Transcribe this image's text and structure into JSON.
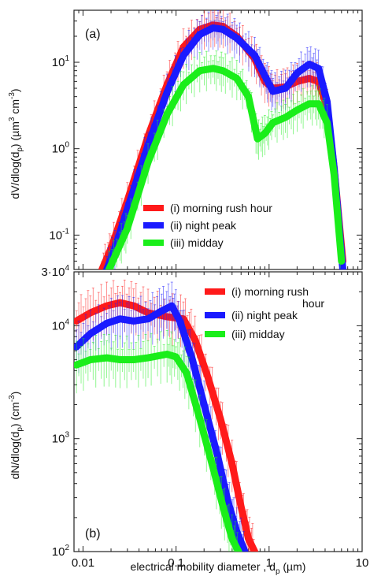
{
  "chart_data": [
    {
      "panel": "(a)",
      "type": "line",
      "ylabel": "dV/dlog(d_p) (µm^3 cm^-3)",
      "ylabel_parts": [
        "dV/dlog(d",
        "p",
        ") (µm",
        "3",
        " cm",
        "-3",
        ")"
      ],
      "xscale": "log",
      "yscale": "log",
      "xlim": [
        0.008,
        10
      ],
      "ylim": [
        0.04,
        40
      ],
      "yticks": [
        {
          "v": 0.1,
          "b": "10",
          "e": "-1"
        },
        {
          "v": 1,
          "b": "10",
          "e": "0"
        },
        {
          "v": 10,
          "b": "10",
          "e": "1"
        }
      ],
      "legend_position": "center-right",
      "legend": [
        "(i) morning rush hour",
        "(ii) night peak",
        "(iii) midday"
      ],
      "series": [
        {
          "name": "(i) morning rush hour",
          "color": "#ff1a1a",
          "x": [
            0.016,
            0.02,
            0.03,
            0.05,
            0.08,
            0.12,
            0.18,
            0.25,
            0.32,
            0.45,
            0.7,
            0.9,
            1.1,
            1.5,
            2.0,
            2.7,
            3.4,
            4.2,
            5.0,
            6.2
          ],
          "y": [
            0.04,
            0.07,
            0.25,
            1.4,
            5.5,
            15,
            24,
            27,
            26,
            20,
            11,
            6,
            5.0,
            5.2,
            6.0,
            6.5,
            6.0,
            3.0,
            0.6,
            0.05
          ]
        },
        {
          "name": "(ii) night peak",
          "color": "#1a1aff",
          "x": [
            0.018,
            0.022,
            0.03,
            0.05,
            0.08,
            0.12,
            0.18,
            0.25,
            0.32,
            0.45,
            0.7,
            0.9,
            1.1,
            1.5,
            2.0,
            2.7,
            3.4,
            4.2,
            5.0,
            6.2
          ],
          "y": [
            0.04,
            0.07,
            0.2,
            1.1,
            4.5,
            12,
            21,
            25,
            24,
            19,
            12,
            7,
            4.6,
            5.0,
            7.5,
            9.5,
            8.5,
            3.5,
            0.6,
            0.04
          ]
        },
        {
          "name": "(iii) midday",
          "color": "#1aee1a",
          "x": [
            0.019,
            0.024,
            0.03,
            0.05,
            0.08,
            0.12,
            0.18,
            0.25,
            0.32,
            0.45,
            0.6,
            0.75,
            0.9,
            1.1,
            1.5,
            2.0,
            2.7,
            3.4,
            4.2,
            5.0,
            6.0
          ],
          "y": [
            0.04,
            0.07,
            0.12,
            0.7,
            2.5,
            5.5,
            8.0,
            8.5,
            8.0,
            6.5,
            4.0,
            1.3,
            1.5,
            2.0,
            2.3,
            2.8,
            3.3,
            3.3,
            2.0,
            0.5,
            0.05
          ]
        }
      ]
    },
    {
      "panel": "(b)",
      "type": "line",
      "xlabel": "electrical mobility diameter, d_p (µm)",
      "xlabel_parts": [
        "electrical mobility diameter , d",
        "p",
        " (µm)"
      ],
      "ylabel": "dN/dlog(d_p) (cm^-3)",
      "ylabel_parts": [
        "dN/dlog(d",
        "p",
        ") (cm",
        "-3",
        ")"
      ],
      "xscale": "log",
      "yscale": "log",
      "xlim": [
        0.008,
        10
      ],
      "ylim": [
        100,
        30000
      ],
      "xticks": [
        {
          "v": 0.01,
          "t": "0.01"
        },
        {
          "v": 0.1,
          "t": "0.1"
        },
        {
          "v": 1,
          "t": "1"
        },
        {
          "v": 10,
          "t": "10"
        }
      ],
      "yticks": [
        {
          "v": 100,
          "b": "10",
          "e": "2"
        },
        {
          "v": 1000,
          "b": "10",
          "e": "3"
        },
        {
          "v": 10000,
          "b": "10",
          "e": "4"
        },
        {
          "v": 30000,
          "b": "3·10",
          "e": "4"
        }
      ],
      "legend_position": "top-right",
      "legend": [
        "(i) morning rush hour",
        "(ii) night peak",
        "(iii) midday"
      ],
      "series": [
        {
          "name": "(i) morning rush hour",
          "color": "#ff1a1a",
          "x": [
            0.0085,
            0.012,
            0.018,
            0.025,
            0.035,
            0.05,
            0.08,
            0.12,
            0.16,
            0.22,
            0.3,
            0.4,
            0.5,
            0.6,
            0.7
          ],
          "y": [
            11000,
            13000,
            15000,
            16000,
            15000,
            13000,
            12000,
            11500,
            7500,
            3500,
            1500,
            600,
            250,
            130,
            100
          ]
        },
        {
          "name": "(ii) night peak",
          "color": "#1a1aff",
          "x": [
            0.0085,
            0.012,
            0.018,
            0.025,
            0.035,
            0.05,
            0.07,
            0.09,
            0.11,
            0.15,
            0.2,
            0.28,
            0.36,
            0.45,
            0.55
          ],
          "y": [
            6500,
            8500,
            10500,
            11500,
            11000,
            11500,
            13500,
            15000,
            11000,
            5000,
            2000,
            700,
            280,
            150,
            100
          ]
        },
        {
          "name": "(iii) midday",
          "color": "#1aee1a",
          "x": [
            0.0085,
            0.012,
            0.018,
            0.025,
            0.035,
            0.05,
            0.08,
            0.1,
            0.13,
            0.18,
            0.25,
            0.32,
            0.4,
            0.47
          ],
          "y": [
            4500,
            5000,
            5200,
            5000,
            5000,
            5200,
            5600,
            5300,
            3800,
            1500,
            550,
            250,
            130,
            100
          ]
        }
      ]
    }
  ]
}
